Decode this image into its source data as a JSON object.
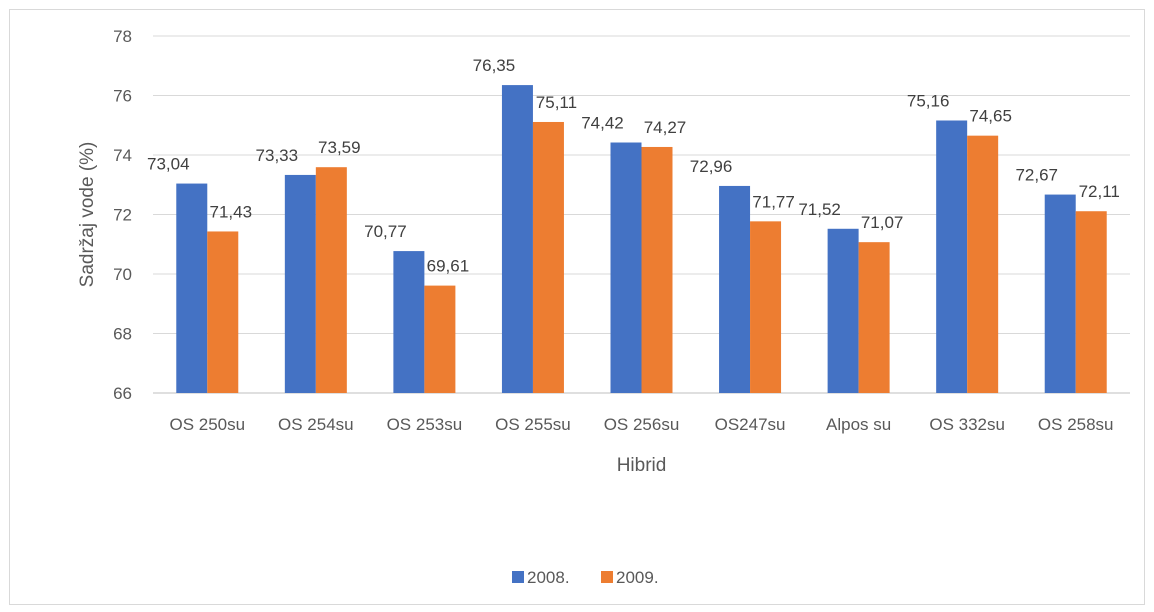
{
  "chart_data": {
    "type": "bar",
    "xlabel": "Hibrid",
    "ylabel": "Sadržaj vode (%)",
    "ylim": [
      66,
      78
    ],
    "ytick_step": 2,
    "grid": true,
    "legend_position": "bottom",
    "categories": [
      "OS 250su",
      "OS 254su",
      "OS 253su",
      "OS 255su",
      "OS 256su",
      "OS247su",
      "Alpos su",
      "OS 332su",
      "OS 258su"
    ],
    "series": [
      {
        "name": "2008.",
        "color": "#4472c4",
        "values": [
          73.04,
          73.33,
          70.77,
          76.35,
          74.42,
          72.96,
          71.52,
          75.16,
          72.67
        ],
        "labels": [
          "73,04",
          "73,33",
          "70,77",
          "76,35",
          "74,42",
          "72,96",
          "71,52",
          "75,16",
          "72,67"
        ]
      },
      {
        "name": "2009.",
        "color": "#ed7d31",
        "values": [
          71.43,
          73.59,
          69.61,
          75.11,
          74.27,
          71.77,
          71.07,
          74.65,
          72.11
        ],
        "labels": [
          "71,43",
          "73,59",
          "69,61",
          "75,11",
          "74,27",
          "71,77",
          "71,07",
          "74,65",
          "72,11"
        ]
      }
    ]
  }
}
